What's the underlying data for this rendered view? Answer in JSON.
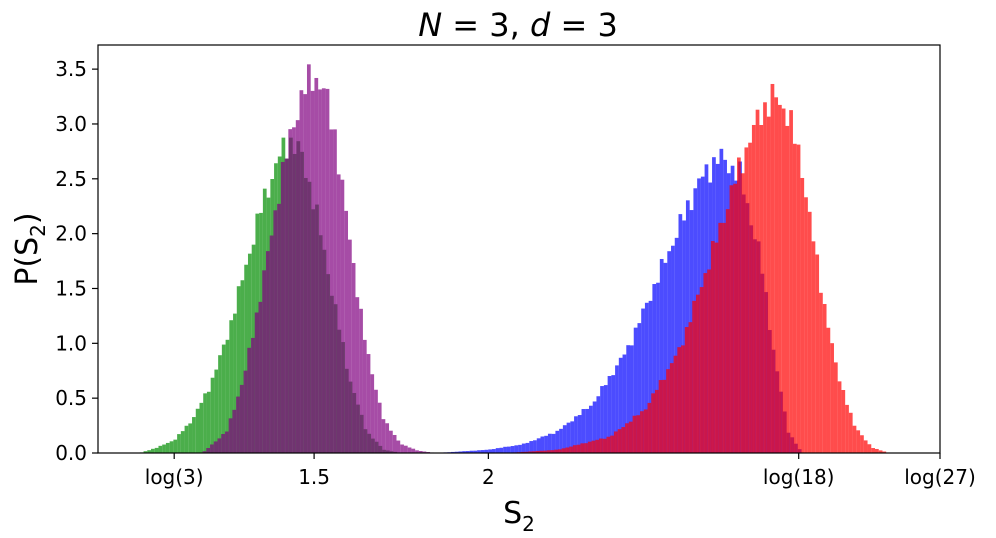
{
  "chart_data": {
    "type": "bar",
    "title": {
      "text_parts": [
        "N",
        " = 3, ",
        "d",
        " = 3"
      ]
    },
    "xlabel": {
      "main": "S",
      "sub": "2"
    },
    "ylabel": {
      "pre": "P(S",
      "sub": "2",
      "post": ")"
    },
    "xlim": [
      0.88,
      3.2958
    ],
    "ylim": [
      0,
      3.72
    ],
    "x_ticks": [
      {
        "value": 1.0986,
        "label": "log(3)"
      },
      {
        "value": 1.5,
        "label": "1.5"
      },
      {
        "value": 2.0,
        "label": "2"
      },
      {
        "value": 2.8904,
        "label": "log(18)"
      },
      {
        "value": 3.2958,
        "label": "log(27)"
      }
    ],
    "y_ticks": [
      {
        "value": 0.0,
        "label": "0.0"
      },
      {
        "value": 0.5,
        "label": "0.5"
      },
      {
        "value": 1.0,
        "label": "1.0"
      },
      {
        "value": 1.5,
        "label": "1.5"
      },
      {
        "value": 2.0,
        "label": "2.0"
      },
      {
        "value": 2.5,
        "label": "2.5"
      },
      {
        "value": 3.0,
        "label": "3.0"
      },
      {
        "value": 3.5,
        "label": "3.5"
      }
    ],
    "grid": false,
    "legend": "none",
    "series": [
      {
        "color": "#2ca02c",
        "opacity": 0.85,
        "bin_width": 0.0107,
        "curve": {
          "x": [
            1.0,
            1.05,
            1.1,
            1.15,
            1.2,
            1.25,
            1.3,
            1.35,
            1.4,
            1.43,
            1.46,
            1.5,
            1.55,
            1.6,
            1.65,
            1.7,
            1.75
          ],
          "y": [
            0.0,
            0.05,
            0.12,
            0.3,
            0.6,
            1.05,
            1.65,
            2.25,
            2.7,
            2.85,
            2.75,
            2.3,
            1.5,
            0.7,
            0.2,
            0.03,
            0.0
          ]
        }
      },
      {
        "color": "#800080",
        "opacity": 0.7,
        "bin_width": 0.0107,
        "curve": {
          "x": [
            1.18,
            1.25,
            1.3,
            1.35,
            1.4,
            1.44,
            1.47,
            1.5,
            1.53,
            1.56,
            1.6,
            1.65,
            1.7,
            1.75,
            1.8,
            1.85
          ],
          "y": [
            0.0,
            0.2,
            0.7,
            1.5,
            2.4,
            3.0,
            3.3,
            3.45,
            3.3,
            2.9,
            2.0,
            0.95,
            0.3,
            0.08,
            0.02,
            0.0
          ]
        }
      },
      {
        "color": "#0000ff",
        "opacity": 0.7,
        "bin_width": 0.0107,
        "curve": {
          "x": [
            1.85,
            2.0,
            2.1,
            2.2,
            2.3,
            2.4,
            2.5,
            2.6,
            2.66,
            2.72,
            2.78,
            2.82,
            2.86,
            2.9
          ],
          "y": [
            0.0,
            0.03,
            0.08,
            0.2,
            0.45,
            0.95,
            1.7,
            2.45,
            2.7,
            2.55,
            1.8,
            0.9,
            0.2,
            0.0
          ]
        }
      },
      {
        "color": "#ff0000",
        "opacity": 0.7,
        "bin_width": 0.0107,
        "curve": {
          "x": [
            2.05,
            2.2,
            2.35,
            2.45,
            2.55,
            2.65,
            2.72,
            2.78,
            2.82,
            2.86,
            2.9,
            2.95,
            3.0,
            3.05,
            3.1,
            3.15
          ],
          "y": [
            0.0,
            0.03,
            0.15,
            0.4,
            0.95,
            1.9,
            2.6,
            3.1,
            3.25,
            3.1,
            2.6,
            1.6,
            0.75,
            0.25,
            0.05,
            0.0
          ]
        }
      }
    ]
  }
}
